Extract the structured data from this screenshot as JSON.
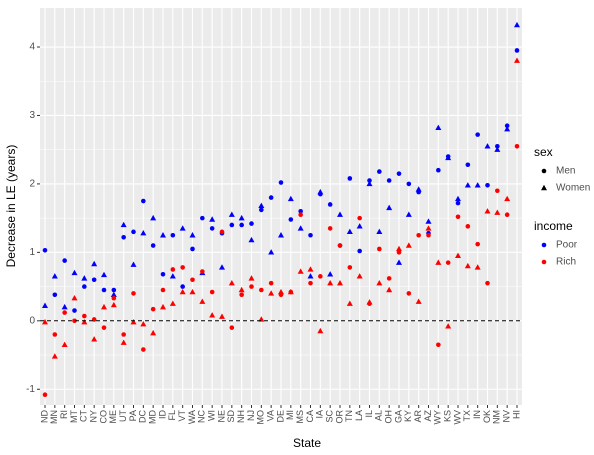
{
  "chart_data": {
    "type": "scatter",
    "x_label": "State",
    "y_label": "Decrease in LE (years)",
    "categories": [
      "ND",
      "MN",
      "RI",
      "MT",
      "CT",
      "NY",
      "CO",
      "ME",
      "UT",
      "PA",
      "DC",
      "MD",
      "ID",
      "FL",
      "VT",
      "WA",
      "NC",
      "WI",
      "NE",
      "SD",
      "NH",
      "NJ",
      "MO",
      "VA",
      "DE",
      "MI",
      "MS",
      "CA",
      "IA",
      "SC",
      "OR",
      "TN",
      "LA",
      "IL",
      "AL",
      "OH",
      "GA",
      "KY",
      "AR",
      "AZ",
      "WY",
      "KS",
      "WV",
      "TX",
      "IN",
      "OK",
      "NM",
      "NV",
      "HI"
    ],
    "ylim": [
      -1.23,
      4.57
    ],
    "yticks": [
      -1,
      0,
      1,
      2,
      3,
      4
    ],
    "grid": true,
    "hline": 0,
    "legend": {
      "sex": {
        "title": "sex",
        "entries": [
          "Men",
          "Women"
        ],
        "shapes": [
          "circle",
          "triangle"
        ]
      },
      "income": {
        "title": "income",
        "entries": [
          "Poor",
          "Rich"
        ],
        "colors": [
          "#0000ff",
          "#ff0000"
        ]
      }
    },
    "series": [
      {
        "sex": "Men",
        "income": "Poor",
        "values": [
          1.03,
          0.38,
          0.88,
          0.15,
          0.5,
          0.6,
          0.45,
          0.45,
          1.22,
          1.3,
          1.75,
          1.1,
          0.68,
          1.25,
          0.5,
          1.05,
          1.5,
          1.35,
          1.28,
          1.4,
          1.4,
          1.42,
          1.62,
          1.8,
          2.02,
          1.48,
          1.6,
          1.25,
          1.85,
          1.7,
          1.1,
          2.08,
          1.02,
          2.05,
          2.18,
          2.05,
          2.15,
          2.0,
          1.88,
          1.28,
          2.2,
          2.4,
          1.72,
          2.28,
          2.72,
          1.98,
          2.55,
          2.85,
          3.95
        ]
      },
      {
        "sex": "Women",
        "income": "Poor",
        "values": [
          0.22,
          0.65,
          0.2,
          0.7,
          0.62,
          0.83,
          0.67,
          0.38,
          1.4,
          0.82,
          1.28,
          1.5,
          1.25,
          0.65,
          1.35,
          1.25,
          0.7,
          1.48,
          0.78,
          1.55,
          1.5,
          1.18,
          1.68,
          1.0,
          1.25,
          1.78,
          1.35,
          0.65,
          1.88,
          0.68,
          1.55,
          1.3,
          1.38,
          2.0,
          1.3,
          1.65,
          0.85,
          1.55,
          1.92,
          1.45,
          2.82,
          2.38,
          1.78,
          1.98,
          1.98,
          2.55,
          2.5,
          2.8,
          4.32
        ]
      },
      {
        "sex": "Men",
        "income": "Rich",
        "values": [
          -1.08,
          -0.2,
          0.12,
          0.0,
          0.07,
          0.02,
          -0.1,
          0.33,
          -0.2,
          0.4,
          -0.42,
          0.17,
          0.45,
          0.75,
          0.78,
          0.6,
          0.72,
          0.42,
          1.3,
          -0.1,
          0.38,
          0.5,
          0.45,
          0.55,
          0.38,
          0.42,
          1.55,
          0.55,
          0.65,
          1.35,
          1.1,
          0.78,
          1.5,
          0.25,
          1.05,
          0.62,
          1.0,
          0.4,
          1.25,
          1.25,
          -0.35,
          0.85,
          1.52,
          1.38,
          1.12,
          0.55,
          1.9,
          1.55,
          2.55
        ]
      },
      {
        "sex": "Women",
        "income": "Rich",
        "values": [
          -0.02,
          -0.52,
          -0.35,
          0.33,
          -0.02,
          -0.27,
          0.2,
          0.23,
          -0.32,
          -0.02,
          -0.05,
          -0.18,
          0.2,
          0.25,
          0.42,
          0.42,
          0.28,
          0.08,
          0.06,
          0.55,
          0.45,
          0.62,
          0.02,
          0.4,
          0.42,
          0.42,
          0.72,
          0.75,
          -0.15,
          0.55,
          0.55,
          0.25,
          0.65,
          0.27,
          0.55,
          0.45,
          1.05,
          1.1,
          0.28,
          1.35,
          0.85,
          -0.08,
          0.95,
          0.8,
          0.78,
          1.6,
          1.58,
          1.78,
          3.8
        ]
      }
    ]
  }
}
